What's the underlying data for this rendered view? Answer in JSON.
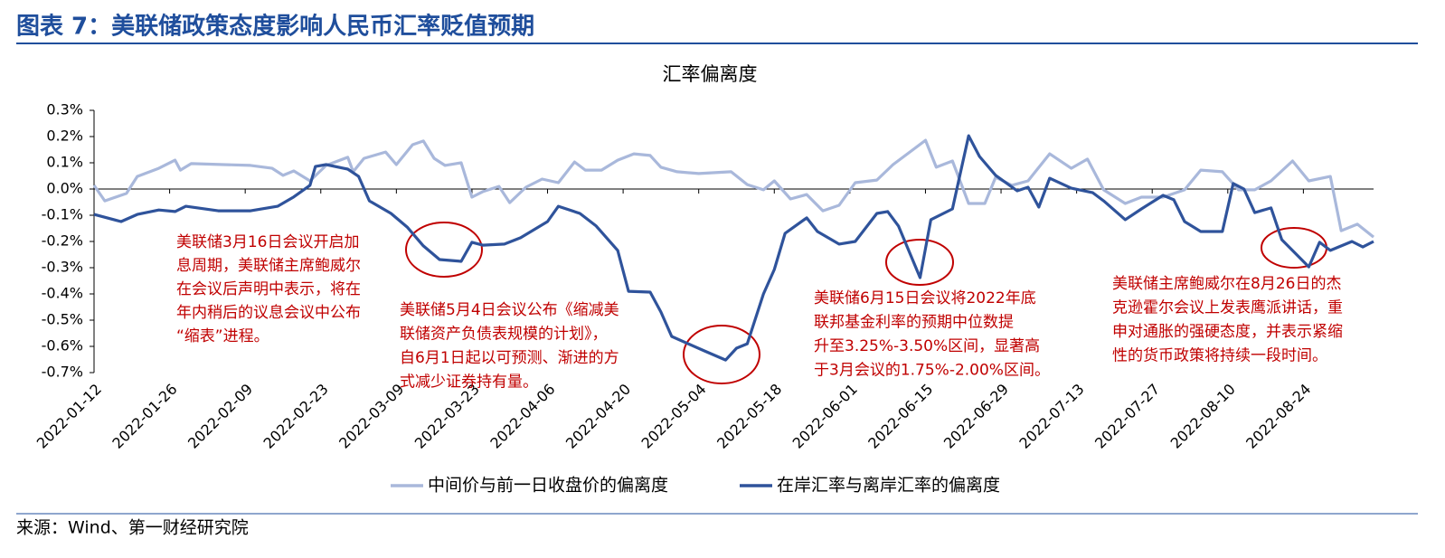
{
  "header": {
    "title": "图表 7：美联储政策态度影响人民币汇率贬值预期"
  },
  "chart_data": {
    "type": "line",
    "title": "汇率偏离度",
    "xlim": [
      "2022-01-12",
      "2022-09-06"
    ],
    "xticks": [
      "2022-01-12",
      "2022-01-26",
      "2022-02-09",
      "2022-02-23",
      "2022-03-09",
      "2022-03-23",
      "2022-04-06",
      "2022-04-20",
      "2022-05-04",
      "2022-05-18",
      "2022-06-01",
      "2022-06-15",
      "2022-06-29",
      "2022-07-13",
      "2022-07-27",
      "2022-08-10",
      "2022-08-24"
    ],
    "ylim": [
      -0.7,
      0.3
    ],
    "yticks": [
      {
        "value": 0.3,
        "label": "0.3%"
      },
      {
        "value": 0.2,
        "label": "0.2%"
      },
      {
        "value": 0.1,
        "label": "0.1%"
      },
      {
        "value": 0.0,
        "label": "0.0%"
      },
      {
        "value": -0.1,
        "label": "-0.1%"
      },
      {
        "value": -0.2,
        "label": "-0.2%"
      },
      {
        "value": -0.3,
        "label": "-0.3%"
      },
      {
        "value": -0.4,
        "label": "-0.4%"
      },
      {
        "value": -0.5,
        "label": "-0.5%"
      },
      {
        "value": -0.6,
        "label": "-0.6%"
      },
      {
        "value": -0.7,
        "label": "-0.7%"
      }
    ],
    "grid": false,
    "series": [
      {
        "name": "中间价与前一日收盘价的偏离度",
        "color": "#a9b8db",
        "x": [
          "2022-01-12",
          "2022-01-14",
          "2022-01-18",
          "2022-01-20",
          "2022-01-24",
          "2022-01-27",
          "2022-01-28",
          "2022-01-30",
          "2022-02-10",
          "2022-02-14",
          "2022-02-16",
          "2022-02-18",
          "2022-02-21",
          "2022-02-24",
          "2022-02-28",
          "2022-03-01",
          "2022-03-03",
          "2022-03-07",
          "2022-03-09",
          "2022-03-12",
          "2022-03-14",
          "2022-03-16",
          "2022-03-18",
          "2022-03-21",
          "2022-03-23",
          "2022-03-25",
          "2022-03-28",
          "2022-03-30",
          "2022-04-02",
          "2022-04-05",
          "2022-04-08",
          "2022-04-11",
          "2022-04-13",
          "2022-04-16",
          "2022-04-19",
          "2022-04-22",
          "2022-04-25",
          "2022-04-27",
          "2022-04-30",
          "2022-05-04",
          "2022-05-10",
          "2022-05-13",
          "2022-05-16",
          "2022-05-18",
          "2022-05-21",
          "2022-05-24",
          "2022-05-27",
          "2022-05-30",
          "2022-06-02",
          "2022-06-06",
          "2022-06-09",
          "2022-06-13",
          "2022-06-15",
          "2022-06-17",
          "2022-06-20",
          "2022-06-23",
          "2022-06-26",
          "2022-06-28",
          "2022-07-01",
          "2022-07-04",
          "2022-07-08",
          "2022-07-12",
          "2022-07-15",
          "2022-07-18",
          "2022-07-22",
          "2022-07-25",
          "2022-07-29",
          "2022-08-02",
          "2022-08-05",
          "2022-08-09",
          "2022-08-12",
          "2022-08-15",
          "2022-08-18",
          "2022-08-22",
          "2022-08-25",
          "2022-08-29",
          "2022-08-31",
          "2022-09-03",
          "2022-09-06"
        ],
        "values": [
          0.014,
          -0.045,
          -0.017,
          0.048,
          0.079,
          0.11,
          0.072,
          0.097,
          0.09,
          0.079,
          0.052,
          0.069,
          0.031,
          0.09,
          0.121,
          0.066,
          0.117,
          0.141,
          0.093,
          0.169,
          0.183,
          0.117,
          0.09,
          0.1,
          -0.031,
          -0.01,
          0.01,
          -0.052,
          0.007,
          0.038,
          0.024,
          0.103,
          0.072,
          0.072,
          0.11,
          0.134,
          0.128,
          0.083,
          0.066,
          0.059,
          0.066,
          0.017,
          -0.003,
          0.031,
          -0.038,
          -0.021,
          -0.083,
          -0.062,
          0.024,
          0.034,
          0.093,
          0.155,
          0.186,
          0.083,
          0.107,
          -0.055,
          -0.055,
          0.045,
          0.014,
          0.031,
          0.134,
          0.079,
          0.114,
          -0.003,
          -0.055,
          -0.031,
          -0.031,
          -0.003,
          0.072,
          0.066,
          -0.003,
          -0.003,
          0.031,
          0.107,
          0.031,
          0.048,
          -0.159,
          -0.134,
          -0.183
        ]
      },
      {
        "name": "在岸汇率与离岸汇率的偏离度",
        "color": "#2f539b",
        "x": [
          "2022-01-12",
          "2022-01-17",
          "2022-01-20",
          "2022-01-24",
          "2022-01-27",
          "2022-01-29",
          "2022-02-04",
          "2022-02-10",
          "2022-02-15",
          "2022-02-18",
          "2022-02-21",
          "2022-02-22",
          "2022-02-24",
          "2022-02-28",
          "2022-03-02",
          "2022-03-04",
          "2022-03-08",
          "2022-03-11",
          "2022-03-14",
          "2022-03-17",
          "2022-03-21",
          "2022-03-23",
          "2022-03-25",
          "2022-03-29",
          "2022-04-01",
          "2022-04-06",
          "2022-04-08",
          "2022-04-12",
          "2022-04-15",
          "2022-04-19",
          "2022-04-21",
          "2022-04-25",
          "2022-04-27",
          "2022-04-29",
          "2022-05-05",
          "2022-05-09",
          "2022-05-11",
          "2022-05-13",
          "2022-05-16",
          "2022-05-18",
          "2022-05-20",
          "2022-05-24",
          "2022-05-26",
          "2022-05-30",
          "2022-06-02",
          "2022-06-06",
          "2022-06-08",
          "2022-06-10",
          "2022-06-14",
          "2022-06-16",
          "2022-06-20",
          "2022-06-22",
          "2022-06-23",
          "2022-06-25",
          "2022-06-28",
          "2022-07-02",
          "2022-07-04",
          "2022-07-06",
          "2022-07-08",
          "2022-07-12",
          "2022-07-16",
          "2022-07-18",
          "2022-07-22",
          "2022-07-25",
          "2022-07-29",
          "2022-07-31",
          "2022-08-02",
          "2022-08-05",
          "2022-08-09",
          "2022-08-11",
          "2022-08-13",
          "2022-08-15",
          "2022-08-18",
          "2022-08-20",
          "2022-08-25",
          "2022-08-27",
          "2022-08-29",
          "2022-09-02",
          "2022-09-04",
          "2022-09-06"
        ],
        "values": [
          -0.097,
          -0.124,
          -0.097,
          -0.08,
          -0.086,
          -0.066,
          -0.083,
          -0.083,
          -0.066,
          -0.03,
          0.014,
          0.086,
          0.093,
          0.076,
          0.048,
          -0.045,
          -0.093,
          -0.145,
          -0.217,
          -0.269,
          -0.276,
          -0.203,
          -0.214,
          -0.21,
          -0.186,
          -0.124,
          -0.066,
          -0.093,
          -0.141,
          -0.234,
          -0.39,
          -0.393,
          -0.469,
          -0.562,
          -0.617,
          -0.652,
          -0.607,
          -0.59,
          -0.4,
          -0.307,
          -0.169,
          -0.11,
          -0.162,
          -0.21,
          -0.2,
          -0.093,
          -0.086,
          -0.141,
          -0.338,
          -0.117,
          -0.076,
          0.11,
          0.203,
          0.124,
          0.052,
          -0.007,
          0.007,
          -0.069,
          0.041,
          0.003,
          -0.014,
          -0.045,
          -0.117,
          -0.076,
          -0.024,
          -0.041,
          -0.124,
          -0.162,
          -0.162,
          0.021,
          0,
          -0.09,
          -0.072,
          -0.193,
          -0.297,
          -0.203,
          -0.234,
          -0.2,
          -0.221,
          -0.2
        ]
      }
    ],
    "annotations": [
      [
        "美联储3月16日会议开启加",
        "息周期，美联储主席鲍威尔",
        "在会议后声明中表示，将在",
        "年内稍后的议息会议中公布",
        "“缩表”进程。"
      ],
      [
        "美联储5月4日会议公布《缩减美",
        "联储资产负债表规模的计划》，",
        "自6月1日起以可预测、渐进的方",
        "式减少证券持有量。"
      ],
      [
        "美联储6月15日会议将2022年底",
        "联邦基金利率的预期中位数提",
        "升至3.25%-3.50%区间，显著高",
        "于3月会议的1.75%-2.00%区间。"
      ],
      [
        "美联储主席鲍威尔在8月26日的杰",
        "克逊霍尔会议上发表鹰派讲话，重",
        "申对通胀的强硬态度，并表示紧缩",
        "性的货币政策将持续一段时间。"
      ]
    ]
  },
  "footer": {
    "source": "来源：Wind、第一财经研究院"
  }
}
